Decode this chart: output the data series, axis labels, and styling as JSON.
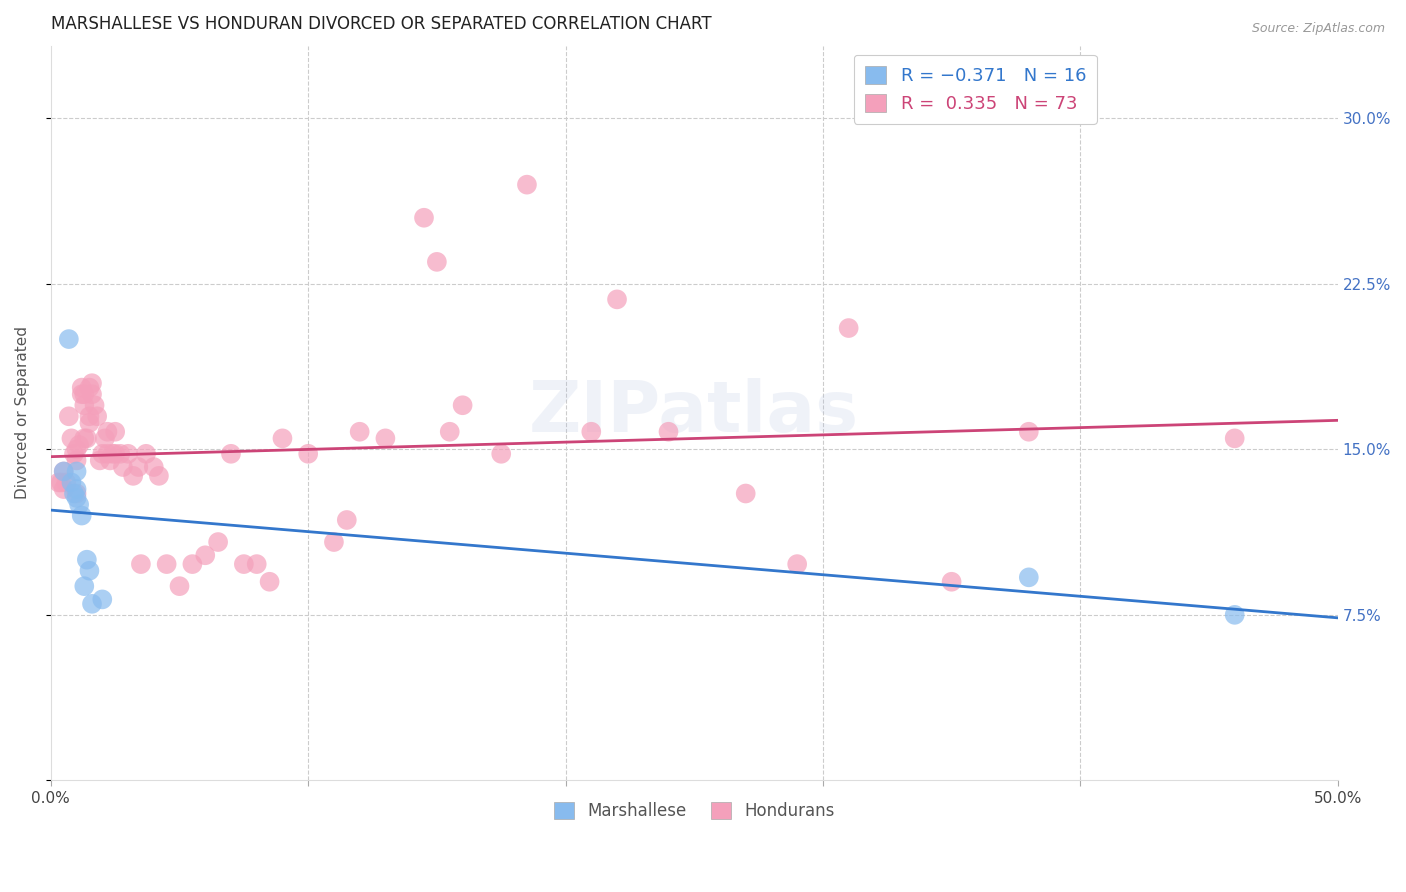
{
  "title": "MARSHALLESE VS HONDURAN DIVORCED OR SEPARATED CORRELATION CHART",
  "source": "Source: ZipAtlas.com",
  "ylabel": "Divorced or Separated",
  "xlim": [
    0.0,
    0.5
  ],
  "ylim": [
    0.0,
    0.333
  ],
  "watermark": "ZIPatlas",
  "blue_color": "#88bbee",
  "pink_color": "#f4a0bb",
  "blue_line_color": "#3377cc",
  "pink_line_color": "#cc4477",
  "marshallese_x": [
    0.005,
    0.007,
    0.008,
    0.009,
    0.01,
    0.01,
    0.01,
    0.011,
    0.012,
    0.013,
    0.014,
    0.015,
    0.016,
    0.02,
    0.38,
    0.46
  ],
  "marshallese_y": [
    0.14,
    0.2,
    0.135,
    0.13,
    0.14,
    0.132,
    0.128,
    0.125,
    0.12,
    0.088,
    0.1,
    0.095,
    0.08,
    0.082,
    0.092,
    0.075
  ],
  "honduran_x": [
    0.003,
    0.004,
    0.005,
    0.005,
    0.006,
    0.007,
    0.008,
    0.009,
    0.01,
    0.01,
    0.01,
    0.011,
    0.012,
    0.012,
    0.013,
    0.013,
    0.013,
    0.014,
    0.015,
    0.015,
    0.015,
    0.016,
    0.016,
    0.017,
    0.018,
    0.019,
    0.02,
    0.021,
    0.022,
    0.022,
    0.023,
    0.024,
    0.025,
    0.025,
    0.027,
    0.028,
    0.03,
    0.032,
    0.034,
    0.035,
    0.037,
    0.04,
    0.042,
    0.045,
    0.05,
    0.055,
    0.06,
    0.065,
    0.07,
    0.075,
    0.08,
    0.085,
    0.09,
    0.1,
    0.11,
    0.115,
    0.12,
    0.13,
    0.145,
    0.15,
    0.155,
    0.16,
    0.175,
    0.185,
    0.21,
    0.22,
    0.24,
    0.27,
    0.29,
    0.31,
    0.35,
    0.38,
    0.46
  ],
  "honduran_y": [
    0.135,
    0.135,
    0.132,
    0.14,
    0.135,
    0.165,
    0.155,
    0.148,
    0.15,
    0.145,
    0.13,
    0.152,
    0.178,
    0.175,
    0.175,
    0.17,
    0.155,
    0.155,
    0.178,
    0.165,
    0.162,
    0.18,
    0.175,
    0.17,
    0.165,
    0.145,
    0.148,
    0.155,
    0.158,
    0.148,
    0.145,
    0.148,
    0.148,
    0.158,
    0.148,
    0.142,
    0.148,
    0.138,
    0.142,
    0.098,
    0.148,
    0.142,
    0.138,
    0.098,
    0.088,
    0.098,
    0.102,
    0.108,
    0.148,
    0.098,
    0.098,
    0.09,
    0.155,
    0.148,
    0.108,
    0.118,
    0.158,
    0.155,
    0.255,
    0.235,
    0.158,
    0.17,
    0.148,
    0.27,
    0.158,
    0.218,
    0.158,
    0.13,
    0.098,
    0.205,
    0.09,
    0.158,
    0.155
  ]
}
